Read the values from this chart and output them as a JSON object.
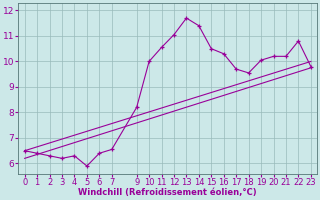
{
  "xlabel": "Windchill (Refroidissement éolien,°C)",
  "x_data": [
    0,
    1,
    2,
    3,
    4,
    5,
    6,
    7,
    9,
    10,
    11,
    12,
    13,
    14,
    15,
    16,
    17,
    18,
    19,
    20,
    21,
    22,
    23
  ],
  "y_main": [
    6.5,
    6.4,
    6.3,
    6.2,
    6.3,
    5.9,
    6.4,
    6.55,
    8.2,
    10.0,
    10.55,
    11.05,
    11.7,
    11.4,
    10.5,
    10.3,
    9.7,
    9.55,
    10.05,
    10.2,
    10.2,
    10.8,
    9.8
  ],
  "line1_x": [
    0,
    23
  ],
  "line1_y": [
    6.5,
    10.0
  ],
  "line2_x": [
    0,
    23
  ],
  "line2_y": [
    6.2,
    9.75
  ],
  "line_color": "#990099",
  "bg_color": "#cce8e8",
  "grid_color": "#99bbbb",
  "ylim": [
    5.6,
    12.3
  ],
  "xlim": [
    -0.5,
    23.5
  ],
  "yticks": [
    6,
    7,
    8,
    9,
    10,
    11,
    12
  ],
  "xticks": [
    0,
    1,
    2,
    3,
    4,
    5,
    6,
    7,
    9,
    10,
    11,
    12,
    13,
    14,
    15,
    16,
    17,
    18,
    19,
    20,
    21,
    22,
    23
  ],
  "xlabel_fontsize": 6,
  "tick_fontsize": 6
}
